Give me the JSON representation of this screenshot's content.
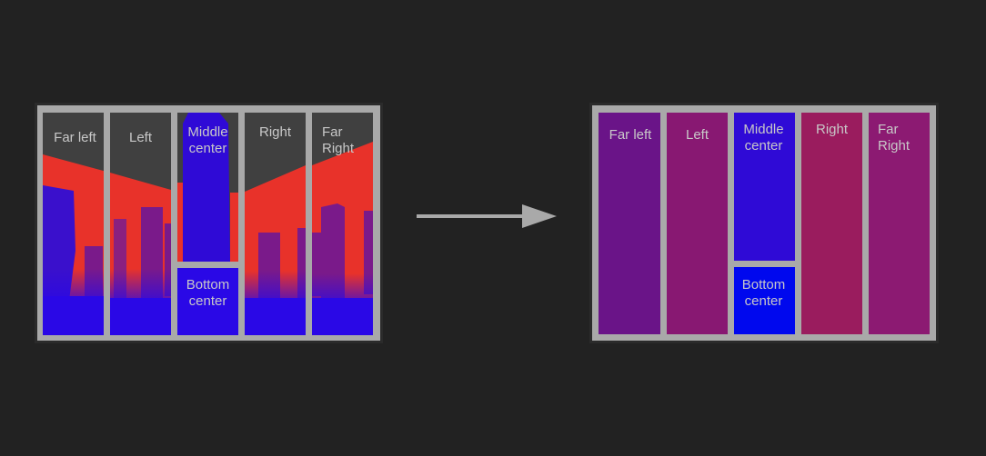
{
  "before": {
    "labels": {
      "far_left": "Far left",
      "left": "Left",
      "middle_center": "Middle\ncenter",
      "right": "Right",
      "far_right": "Far\nRight",
      "bottom_center": "Bottom\ncenter"
    }
  },
  "after": {
    "labels": {
      "far_left": "Far left",
      "left": "Left",
      "middle_center": "Middle\ncenter",
      "right": "Right",
      "far_right": "Far\nRight",
      "bottom_center": "Bottom\ncenter"
    },
    "colors": {
      "far_left": "#6a1488",
      "left": "#881872",
      "middle_center": "#2f0ad6",
      "right": "#9a1c5e",
      "far_right": "#8c1a72",
      "bottom_center": "#0008ee"
    }
  },
  "colors": {
    "sky": "#404040",
    "red_plane": "#e8322a",
    "blue_ground": "#2a08e6",
    "frame": "#a9a9a9",
    "arrow": "#a9a9a9"
  }
}
